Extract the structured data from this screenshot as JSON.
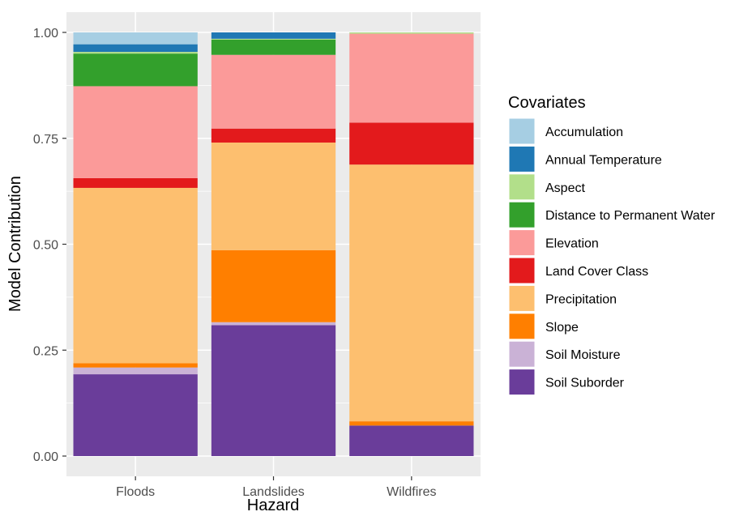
{
  "chart_data": {
    "type": "bar",
    "stacked": true,
    "xlabel": "Hazard",
    "ylabel": "Model Contribution",
    "ylim": [
      0,
      1
    ],
    "yticks": [
      0,
      0.25,
      0.5,
      0.75,
      1
    ],
    "ytick_labels": [
      "0.00",
      "0.25",
      "0.50",
      "0.75",
      "1.00"
    ],
    "grid": true,
    "legend_position": "right",
    "legend_title": "Covariates",
    "categories": [
      "Floods",
      "Landslides",
      "Wildfires"
    ],
    "series": [
      {
        "name": "Accumulation",
        "color": "#a6cee3",
        "values": [
          0.028,
          0.0,
          0.0
        ]
      },
      {
        "name": "Annual Temperature",
        "color": "#1f78b4",
        "values": [
          0.018,
          0.015,
          0.0
        ]
      },
      {
        "name": "Aspect",
        "color": "#b2df8a",
        "values": [
          0.004,
          0.002,
          0.003
        ]
      },
      {
        "name": "Distance to Permanent Water",
        "color": "#33a02c",
        "values": [
          0.077,
          0.036,
          0.0
        ]
      },
      {
        "name": "Elevation",
        "color": "#fb9a99",
        "values": [
          0.217,
          0.174,
          0.21
        ]
      },
      {
        "name": "Land Cover Class",
        "color": "#e31a1c",
        "values": [
          0.023,
          0.033,
          0.099
        ]
      },
      {
        "name": "Precipitation",
        "color": "#fdbf6f",
        "values": [
          0.414,
          0.254,
          0.606
        ]
      },
      {
        "name": "Slope",
        "color": "#ff7f00",
        "values": [
          0.01,
          0.17,
          0.01
        ]
      },
      {
        "name": "Soil Moisture",
        "color": "#cab2d6",
        "values": [
          0.016,
          0.007,
          0.0
        ]
      },
      {
        "name": "Soil Suborder",
        "color": "#6a3d9a",
        "values": [
          0.193,
          0.309,
          0.072
        ]
      }
    ]
  }
}
